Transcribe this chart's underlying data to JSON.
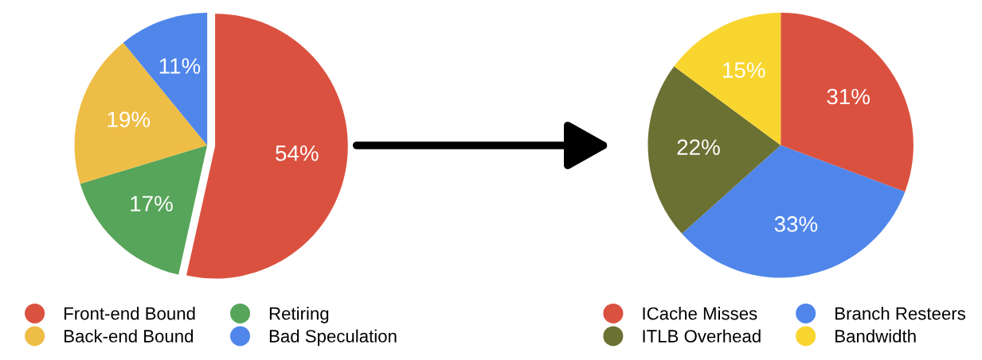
{
  "chart_data": [
    {
      "type": "pie",
      "categories": [
        "Front-end Bound",
        "Retiring",
        "Back-end Bound",
        "Bad Speculation"
      ],
      "values": [
        54,
        17,
        19,
        11
      ],
      "colors": [
        "#db5140",
        "#57a55a",
        "#eebd46",
        "#5086ea"
      ],
      "value_labels": [
        "54%",
        "17%",
        "19%",
        "11%"
      ],
      "legend": "bottom"
    },
    {
      "type": "pie",
      "categories": [
        "ICache Misses",
        "Branch Resteers",
        "ITLB Overhead",
        "Bandwidth"
      ],
      "values": [
        31,
        33,
        22,
        15
      ],
      "colors": [
        "#db5140",
        "#5086ea",
        "#6b7033",
        "#f9d530"
      ],
      "value_labels": [
        "31%",
        "33%",
        "22%",
        "15%"
      ],
      "legend": "bottom"
    }
  ]
}
